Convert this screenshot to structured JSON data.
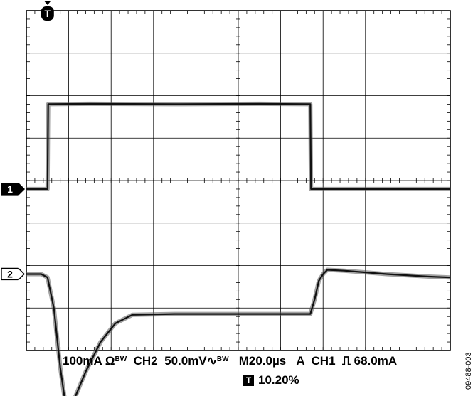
{
  "chart_data": {
    "type": "line",
    "title": "",
    "grid": true,
    "divisions": {
      "x": 10,
      "y": 8
    },
    "time_per_div_us": 20,
    "x_range_us": [
      -10,
      190
    ],
    "series": [
      {
        "name": "",
        "channel": "1",
        "scale_per_div_mA": 100,
        "offset_div": -0.2,
        "points": [
          [
            -10,
            0
          ],
          [
            0,
            0
          ],
          [
            0.3,
            200
          ],
          [
            20,
            201
          ],
          [
            60,
            200
          ],
          [
            100,
            201
          ],
          [
            124,
            200
          ],
          [
            124.3,
            0
          ],
          [
            190,
            0
          ]
        ]
      },
      {
        "name": "",
        "channel": "2",
        "scale_per_div_mV": 50,
        "offset_div": -2.2,
        "points": [
          [
            -10,
            0
          ],
          [
            -3,
            0
          ],
          [
            0,
            -4
          ],
          [
            3,
            -40
          ],
          [
            6,
            -110
          ],
          [
            8,
            -145
          ],
          [
            10,
            -152
          ],
          [
            13,
            -145
          ],
          [
            18,
            -115
          ],
          [
            25,
            -80
          ],
          [
            32,
            -58
          ],
          [
            40,
            -48
          ],
          [
            60,
            -47
          ],
          [
            100,
            -47
          ],
          [
            124,
            -47
          ],
          [
            126,
            -30
          ],
          [
            128,
            -8
          ],
          [
            130,
            0
          ],
          [
            132,
            5
          ],
          [
            140,
            4
          ],
          [
            160,
            0
          ],
          [
            180,
            -3
          ],
          [
            190,
            -4
          ]
        ]
      }
    ],
    "markers": {
      "ch1": "1",
      "ch2": "2",
      "trigger": "T"
    },
    "readout": {
      "ch1_scale": "100mA",
      "ch1_coupling": "Ω",
      "ch1_bw": "BW",
      "ch2_label": "CH2",
      "ch2_scale": "50.0mV",
      "ch2_bw_symbol": "∿",
      "ch2_bw": "BW",
      "timebase": "M20.0µs",
      "trigger_mode": "A",
      "trigger_source": "CH1",
      "trigger_slope": "⎍",
      "trigger_level": "68.0mA",
      "trigger_badge": "T",
      "trigger_position": "10.20%"
    },
    "figure_id": "09488-003"
  }
}
